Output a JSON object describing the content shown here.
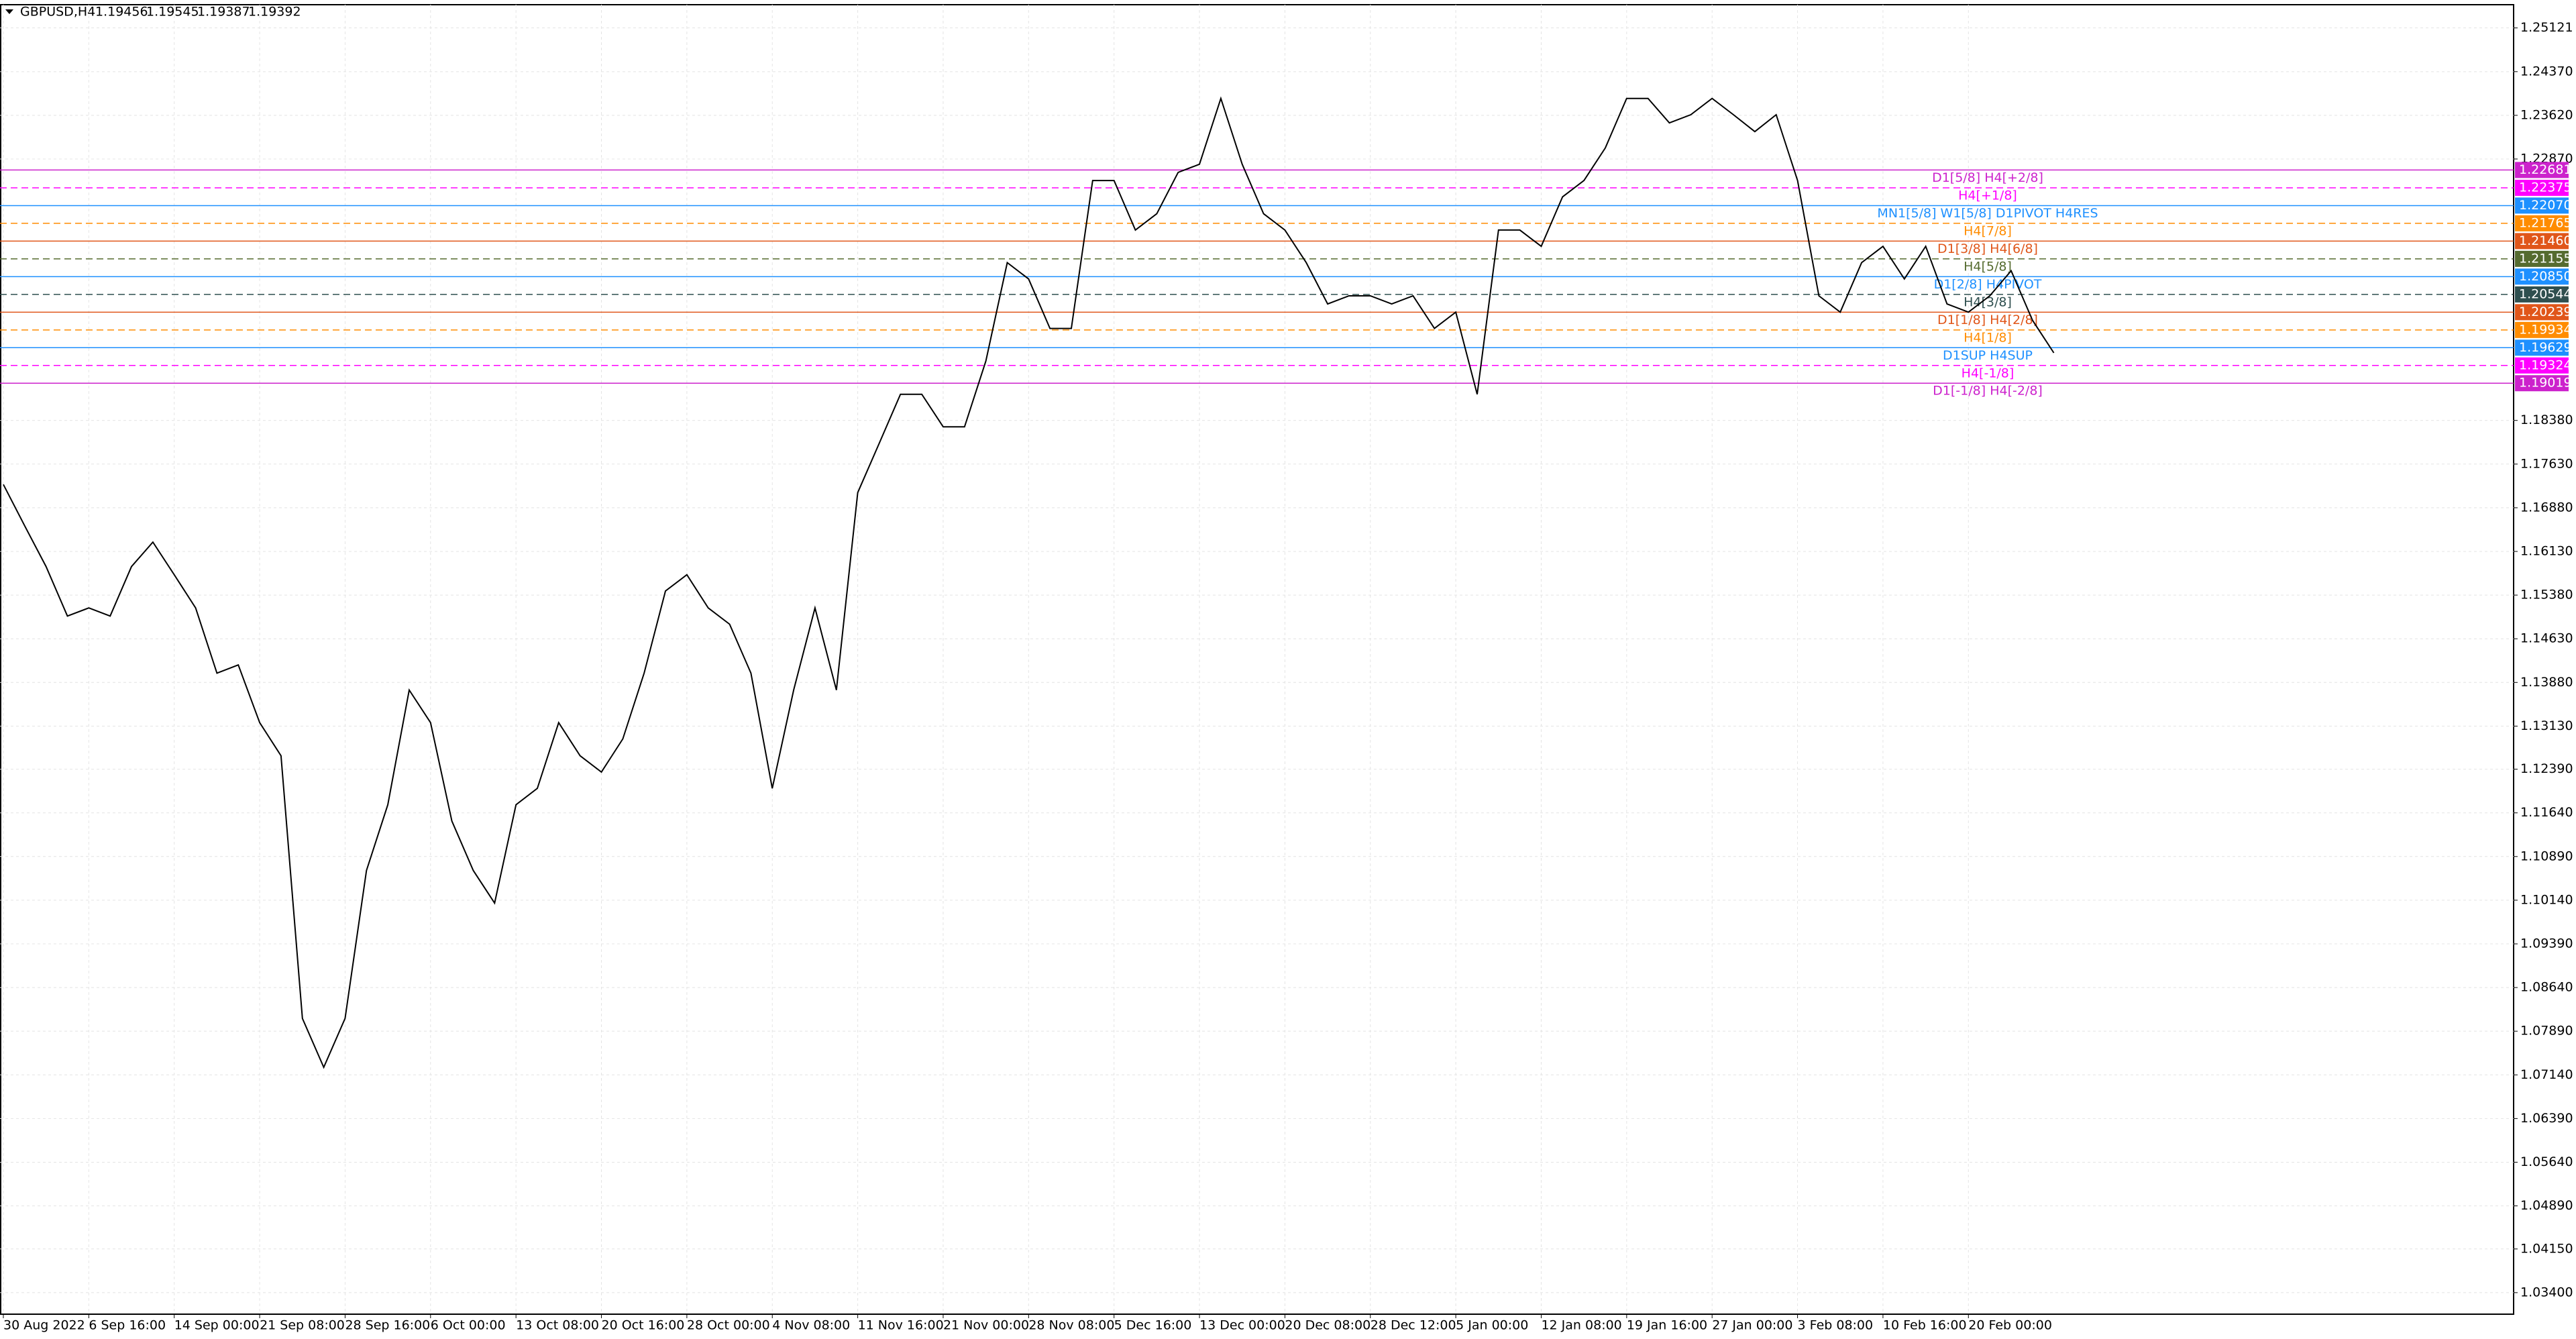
{
  "chart_data": {
    "type": "line",
    "title": "GBPUSD,H4",
    "ohlc": [
      1.19456,
      1.19545,
      1.19387,
      1.19392
    ],
    "categories": [
      "30 Aug 2022",
      null,
      null,
      null,
      "6 Sep 16:00",
      null,
      null,
      null,
      "14 Sep 00:00",
      null,
      null,
      null,
      "21 Sep 08:00",
      null,
      null,
      null,
      "28 Sep 16:00",
      null,
      null,
      null,
      "6 Oct 00:00",
      null,
      null,
      null,
      "13 Oct 08:00",
      null,
      null,
      null,
      "20 Oct 16:00",
      null,
      null,
      null,
      "28 Oct 00:00",
      null,
      null,
      null,
      "4 Nov 08:00",
      null,
      null,
      null,
      "11 Nov 16:00",
      null,
      null,
      null,
      "21 Nov 00:00",
      null,
      null,
      null,
      "28 Nov 08:00",
      null,
      null,
      null,
      "5 Dec 16:00",
      null,
      null,
      null,
      "13 Dec 00:00",
      null,
      null,
      null,
      "20 Dec 08:00",
      null,
      null,
      null,
      "28 Dec 12:00",
      null,
      null,
      null,
      "5 Jan 00:00",
      null,
      null,
      null,
      "12 Jan 08:00",
      null,
      null,
      null,
      "19 Jan 16:00",
      null,
      null,
      null,
      "27 Jan 00:00",
      null,
      null,
      null,
      "3 Feb 08:00",
      null,
      null,
      null,
      "10 Feb 16:00",
      null,
      null,
      null,
      "20 Feb 00:00",
      null,
      null,
      null,
      null
    ],
    "series": [
      {
        "color": "#000000",
        "values": [
          1.1728,
          1.1657,
          1.1587,
          1.1502,
          1.1516,
          1.1502,
          1.1587,
          1.1629,
          1.1573,
          1.1516,
          1.1404,
          1.1418,
          1.1319,
          1.1262,
          1.0811,
          1.0727,
          1.0811,
          1.1065,
          1.1178,
          1.1375,
          1.1319,
          1.115,
          1.1065,
          1.1009,
          1.1178,
          1.1206,
          1.1319,
          1.1262,
          1.1234,
          1.1291,
          1.1404,
          1.1545,
          1.1573,
          1.1516,
          1.1488,
          1.1404,
          1.1206,
          1.1375,
          1.1516,
          1.1375,
          1.1714,
          1.1798,
          1.1883,
          1.1883,
          1.1827,
          1.1827,
          1.194,
          1.2109,
          1.2081,
          1.1996,
          1.1996,
          1.225,
          1.225,
          1.2165,
          1.2193,
          1.2264,
          1.2278,
          1.2391,
          1.2278,
          1.2193,
          1.2165,
          1.2109,
          1.2038,
          1.2052,
          1.2052,
          1.2038,
          1.2052,
          1.1996,
          1.2024,
          1.1883,
          1.2165,
          1.2165,
          1.2137,
          1.2222,
          1.225,
          1.2306,
          1.2391,
          1.2391,
          1.2349,
          1.2363,
          1.2391,
          1.2363,
          1.2334,
          1.2363,
          1.225,
          1.2052,
          1.2024,
          1.2109,
          1.2137,
          1.2081,
          1.2137,
          1.2038,
          1.2024,
          1.2052,
          1.2095,
          1.201,
          1.1954
        ]
      }
    ],
    "ylim": [
      1.0303,
      1.2552
    ],
    "yticks": [
      1.25121,
      {
        "value": 1.2437,
        "label": "1.24370"
      },
      {
        "value": 1.2362,
        "label": "1.23620"
      },
      {
        "value": 1.2287,
        "label": "1.22870"
      },
      {
        "value": 1.1838,
        "label": "1.18380"
      },
      {
        "value": 1.1763,
        "label": "1.17630"
      },
      {
        "value": 1.1688,
        "label": "1.16880"
      },
      {
        "value": 1.1613,
        "label": "1.16130"
      },
      {
        "value": 1.1538,
        "label": "1.15380"
      },
      {
        "value": 1.1463,
        "label": "1.14630"
      },
      {
        "value": 1.1388,
        "label": "1.13880"
      },
      {
        "value": 1.1313,
        "label": "1.13130"
      },
      {
        "value": 1.1239,
        "label": "1.12390"
      },
      {
        "value": 1.1164,
        "label": "1.11640"
      },
      {
        "value": 1.1089,
        "label": "1.10890"
      },
      {
        "value": 1.1014,
        "label": "1.10140"
      },
      {
        "value": 1.0939,
        "label": "1.09390"
      },
      {
        "value": 1.0864,
        "label": "1.08640"
      },
      {
        "value": 1.0789,
        "label": "1.07890"
      },
      {
        "value": 1.0714,
        "label": "1.07140"
      },
      {
        "value": 1.0639,
        "label": "1.06390"
      },
      {
        "value": 1.0564,
        "label": "1.05640"
      },
      {
        "value": 1.0489,
        "label": "1.04890"
      },
      {
        "value": 1.0415,
        "label": "1.04150"
      },
      {
        "value": 1.034,
        "label": "1.03400"
      }
    ],
    "grid": true,
    "levels": [
      {
        "name": "D1[5/8] H4[+2/8]",
        "value": 1.22681,
        "color": "#cc22cc",
        "dashed": false
      },
      {
        "name": "H4[+1/8]",
        "value": 1.22375,
        "color": "#ff00ff",
        "dashed": true
      },
      {
        "name": "MN1[5/8] W1[5/8] D1PIVOT H4RES",
        "value": 1.2207,
        "value_label": "1.22070",
        "color": "#1e90ff",
        "dashed": false
      },
      {
        "name": "H4[7/8]",
        "value": 1.21765,
        "color": "#ff8c00",
        "dashed": true
      },
      {
        "name": "D1[3/8] H4[6/8]",
        "value": 1.2146,
        "value_label": "1.21460",
        "color": "#e0561a",
        "dashed": false
      },
      {
        "name": "H4[5/8]",
        "value": 1.21155,
        "color": "#556b2f",
        "dashed": true
      },
      {
        "name": "D1[2/8] H4PIVOT",
        "value": 1.2085,
        "value_label": "1.20850",
        "color": "#1e90ff",
        "dashed": false
      },
      {
        "name": "H4[3/8]",
        "value": 1.20544,
        "color": "#2f4f4f",
        "dashed": true
      },
      {
        "name": "D1[1/8] H4[2/8]",
        "value": 1.20239,
        "color": "#e0561a",
        "dashed": false
      },
      {
        "name": "H4[1/8]",
        "value": 1.19934,
        "color": "#ff8c00",
        "dashed": true
      },
      {
        "name": "D1SUP H4SUP",
        "value": 1.19629,
        "color": "#1e90ff",
        "dashed": false
      },
      {
        "name": "H4[-1/8]",
        "value": 1.19324,
        "color": "#ff00ff",
        "dashed": true
      },
      {
        "name": "D1[-1/8] H4[-2/8]",
        "value": 1.19019,
        "color": "#cc22cc",
        "dashed": false
      }
    ]
  }
}
